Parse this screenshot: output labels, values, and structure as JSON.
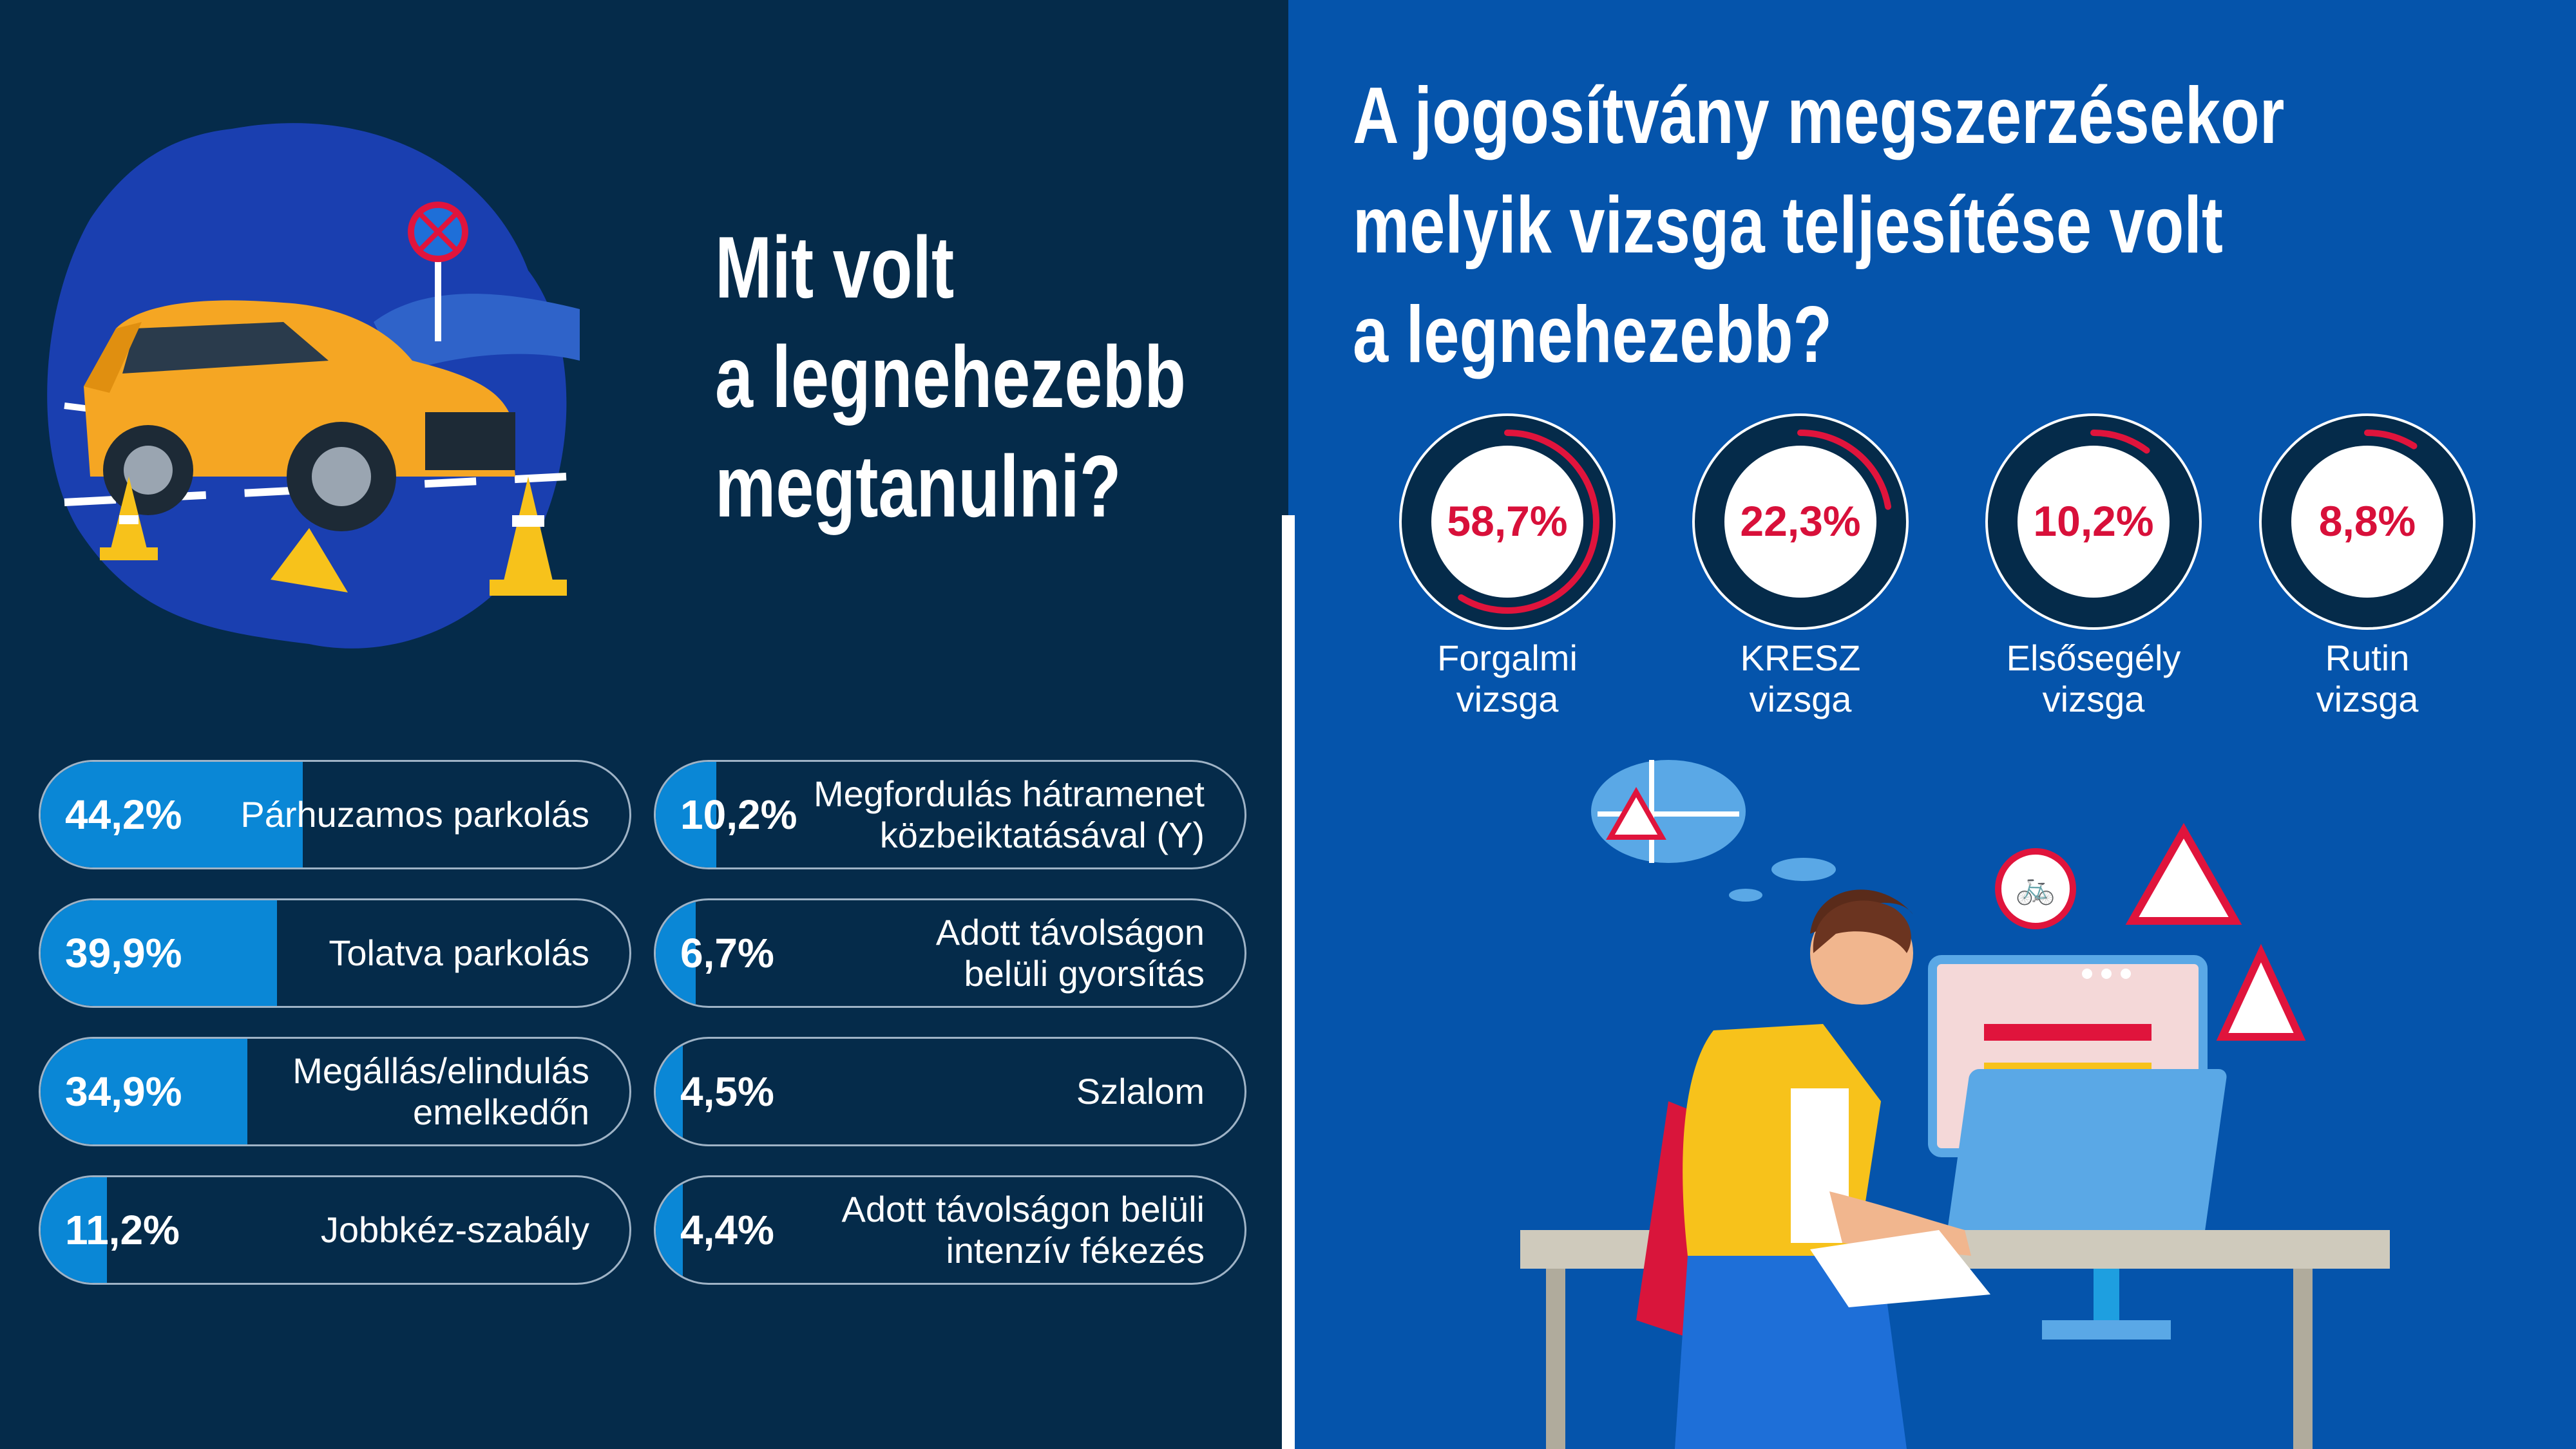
{
  "left_title": {
    "line1": "Mit volt",
    "line2": "a legnehezebb",
    "line3": "megtanulni?"
  },
  "right_title": {
    "line1": "A jogosítvány megszerzésekor",
    "line2": "melyik vizsga teljesítése volt",
    "line3": "a legnehezebb?"
  },
  "colors": {
    "left_bg": "#052b4a",
    "right_bg": "#0554ab",
    "bar_fill": "#0a87d6",
    "ring_accent": "#e0143c",
    "ring_dark": "#052b4a",
    "ring_text": "#d8103a"
  },
  "chart_data": [
    {
      "type": "bar",
      "title": "Mit volt a legnehezebb megtanulni?",
      "unit": "%",
      "categories": [
        "Párhuzamos parkolás",
        "Tolatva parkolás",
        "Megállás/elindulás emelkedőn",
        "Jobbkéz-szabály",
        "Megfordulás hátramenet közbeiktatásával (Y)",
        "Adott távolságon belüli gyorsítás",
        "Szlalom",
        "Adott távolságon belüli intenzív fékezés"
      ],
      "values": [
        44.2,
        39.9,
        34.9,
        11.2,
        10.2,
        6.7,
        4.5,
        4.4
      ],
      "value_labels": [
        "44,2%",
        "39,9%",
        "34,9%",
        "11,2%",
        "10,2%",
        "6,7%",
        "4,5%",
        "4,4%"
      ],
      "display_labels": [
        "Párhuzamos parkolás",
        "Tolatva parkolás",
        "Megállás/elindulás\nemelkedőn",
        "Jobbkéz-szabály",
        "Megfordulás hátramenet\nközbeiktatásával (Y)",
        "Adott távolságon\nbelüli gyorsítás",
        "Szlalom",
        "Adott távolságon belüli\nintenzív fékezés"
      ],
      "ylim": [
        0,
        100
      ]
    },
    {
      "type": "pie",
      "title": "A jogosítvány megszerzésekor melyik vizsga teljesítése volt a legnehezebb?",
      "unit": "%",
      "categories": [
        "Forgalmi vizsga",
        "KRESZ vizsga",
        "Elsősegély vizsga",
        "Rutin vizsga"
      ],
      "values": [
        58.7,
        22.3,
        10.2,
        8.8
      ],
      "value_labels": [
        "58,7%",
        "22,3%",
        "10,2%",
        "8,8%"
      ],
      "display_labels": [
        "Forgalmi\nvizsga",
        "KRESZ\nvizsga",
        "Elsősegély\nvizsga",
        "Rutin\nvizsga"
      ]
    }
  ]
}
